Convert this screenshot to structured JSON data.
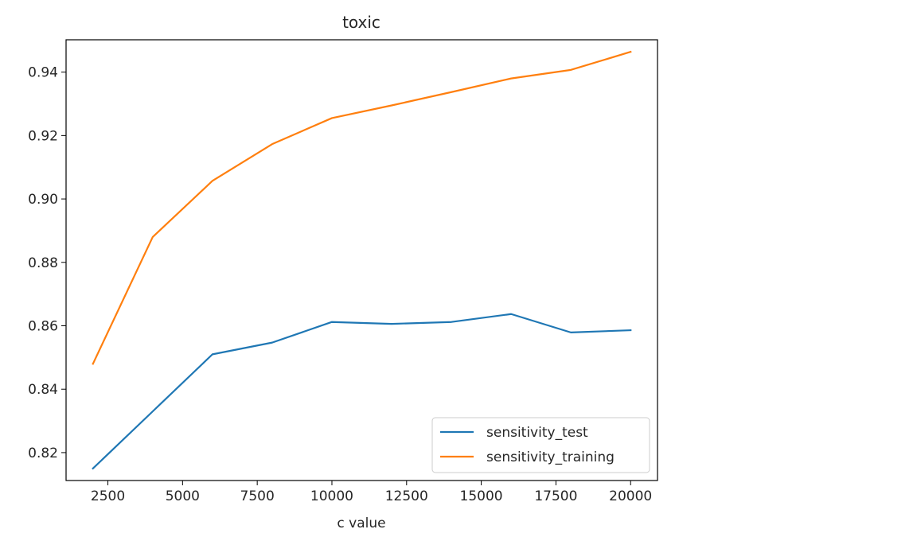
{
  "chart_data": {
    "type": "line",
    "title": "toxic",
    "xlabel": "c value",
    "ylabel": "",
    "x": [
      2000,
      4000,
      6000,
      8000,
      10000,
      12000,
      14000,
      16000,
      18000,
      20000
    ],
    "series": [
      {
        "name": "sensitivity_test",
        "color": "#1f77b4",
        "values": [
          0.815,
          0.833,
          0.851,
          0.8547,
          0.8612,
          0.8606,
          0.8612,
          0.8637,
          0.8579,
          0.8586
        ]
      },
      {
        "name": "sensitivity_training",
        "color": "#ff7f0e",
        "values": [
          0.848,
          0.888,
          0.9057,
          0.9173,
          0.9255,
          0.9295,
          0.9337,
          0.938,
          0.9407,
          0.9464
        ]
      }
    ],
    "xlim": [
      1100,
      20900
    ],
    "ylim": [
      0.8112,
      0.9502
    ],
    "xticks": [
      2500,
      5000,
      7500,
      10000,
      12500,
      15000,
      17500,
      20000
    ],
    "yticks": [
      0.82,
      0.84,
      0.86,
      0.88,
      0.9,
      0.92,
      0.94
    ],
    "xtick_labels": [
      "2500",
      "5000",
      "7500",
      "10000",
      "12500",
      "15000",
      "17500",
      "20000"
    ],
    "ytick_labels": [
      "0.82",
      "0.84",
      "0.86",
      "0.88",
      "0.90",
      "0.92",
      "0.94"
    ],
    "grid": false,
    "legend_position": "lower-right"
  }
}
